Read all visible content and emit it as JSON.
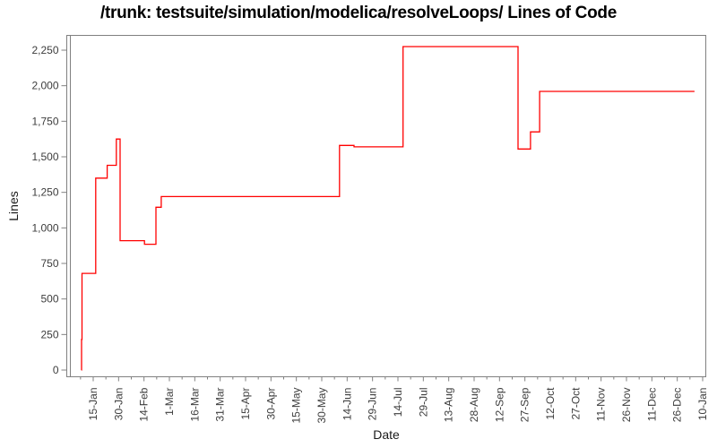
{
  "chart_data": {
    "type": "line",
    "style": "step-after",
    "title": "/trunk: testsuite/simulation/modelica/resolveLoops/ Lines of Code",
    "xlabel": "Date",
    "ylabel": "Lines",
    "grid": false,
    "legend": "none",
    "line_color": "#ff0000",
    "axis_color": "#808080",
    "tick_label_color": "#3d3d3d",
    "ylim": [
      0,
      2250
    ],
    "y_tick_values": [
      0,
      250,
      500,
      750,
      1000,
      1250,
      1500,
      1750,
      2000,
      2250
    ],
    "y_tick_labels": [
      "0",
      "250",
      "500",
      "750",
      "1,000",
      "1,250",
      "1,500",
      "1,750",
      "2,000",
      "2,250"
    ],
    "x_tick_labels": [
      "15-Jan",
      "30-Jan",
      "14-Feb",
      "1-Mar",
      "16-Mar",
      "31-Mar",
      "15-Apr",
      "30-Apr",
      "15-May",
      "30-May",
      "14-Jun",
      "29-Jun",
      "14-Jul",
      "29-Jul",
      "13-Aug",
      "28-Aug",
      "12-Sep",
      "27-Sep",
      "12-Oct",
      "27-Oct",
      "11-Nov",
      "26-Nov",
      "11-Dec",
      "26-Dec",
      "10-Jan"
    ],
    "series": [
      {
        "name": "Lines of Code",
        "color": "#ff0000",
        "steps": [
          {
            "date": "8-Jan",
            "t": -0.47,
            "value": 0
          },
          {
            "date": "8-Jan",
            "t": -0.46,
            "value": 215
          },
          {
            "date": "9-Jan",
            "t": -0.44,
            "value": 680
          },
          {
            "date": "16-Jan",
            "t": 0.1,
            "value": 1350
          },
          {
            "date": "24-Jan",
            "t": 0.55,
            "value": 1440
          },
          {
            "date": "29-Jan",
            "t": 0.91,
            "value": 1625
          },
          {
            "date": "31-Jan",
            "t": 1.06,
            "value": 910
          },
          {
            "date": "14-Feb",
            "t": 2.02,
            "value": 885
          },
          {
            "date": "22-Feb",
            "t": 2.47,
            "value": 1145
          },
          {
            "date": "24-Feb",
            "t": 2.68,
            "value": 1220
          },
          {
            "date": "10-Jun",
            "t": 9.7,
            "value": 1580
          },
          {
            "date": "18-Jun",
            "t": 10.27,
            "value": 1570
          },
          {
            "date": "17-Jul",
            "t": 12.2,
            "value": 2275
          },
          {
            "date": "22-Sep",
            "t": 16.73,
            "value": 1555
          },
          {
            "date": "30-Sep",
            "t": 17.22,
            "value": 1675
          },
          {
            "date": "5-Oct",
            "t": 17.58,
            "value": 1960
          }
        ],
        "end_t": 23.68,
        "end_date": "5-Jan"
      }
    ]
  }
}
